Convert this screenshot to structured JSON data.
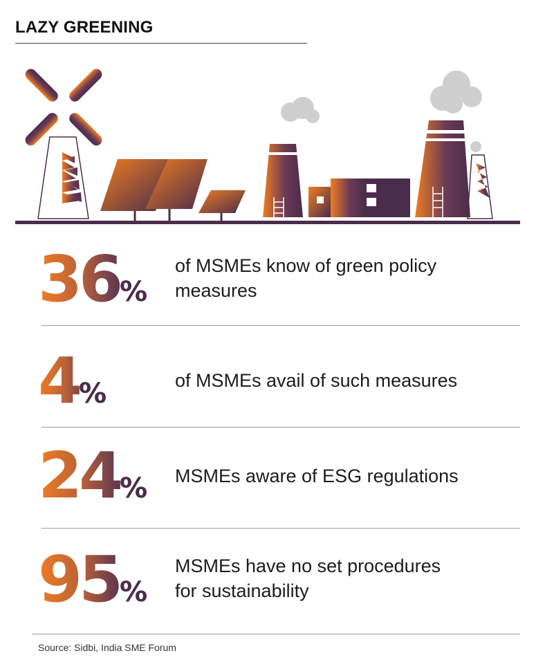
{
  "title": "LAZY GREENING",
  "stats": [
    {
      "value": "36",
      "unit": "%",
      "text_line1": "of MSMEs know of green policy",
      "text_line2": "measures"
    },
    {
      "value": "4",
      "unit": "%",
      "text_line1": "of MSMEs avail of such measures",
      "text_line2": ""
    },
    {
      "value": "24",
      "unit": "%",
      "text_line1": "MSMEs aware of ESG regulations",
      "text_line2": ""
    },
    {
      "value": "95",
      "unit": "%",
      "text_line1": "MSMEs have no set procedures",
      "text_line2": "for sustainability"
    }
  ],
  "source": "Source: Sidbi, India SME Forum",
  "colors": {
    "orange": "#ef7d22",
    "purple": "#4a2d4a",
    "smoke": "#cfcfcf"
  }
}
